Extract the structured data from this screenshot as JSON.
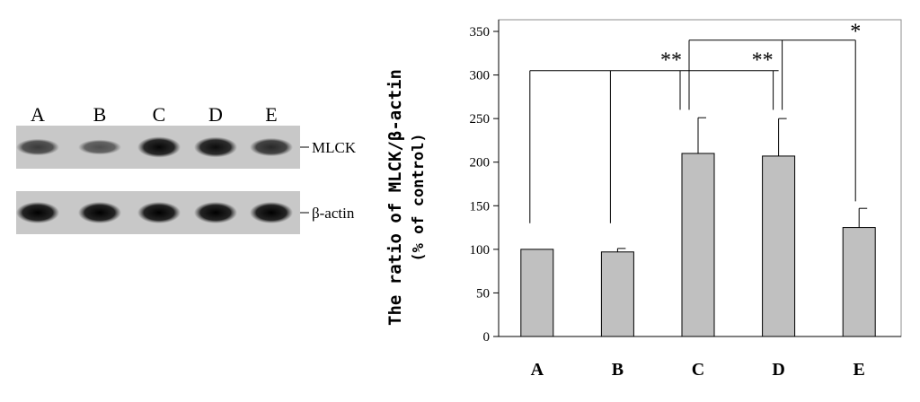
{
  "blot": {
    "lane_labels": [
      "A",
      "B",
      "C",
      "D",
      "E"
    ],
    "rows": [
      {
        "name": "MLCK",
        "label": "MLCK",
        "band_intensity": [
          0.55,
          0.4,
          0.95,
          0.9,
          0.7
        ]
      },
      {
        "name": "beta-actin",
        "label": "β-actin",
        "band_intensity": [
          1.0,
          1.0,
          1.0,
          1.0,
          1.0
        ]
      }
    ]
  },
  "chart_data": {
    "type": "bar",
    "categories": [
      "A",
      "B",
      "C",
      "D",
      "E"
    ],
    "values": [
      100,
      97,
      210,
      207,
      125
    ],
    "errors": [
      0,
      4,
      41,
      43,
      22
    ],
    "title": "",
    "ylabel": "The ratio of MLCK/β-actin",
    "ylabel2": "(% of control)",
    "xlabel": "",
    "ylim": [
      0,
      350
    ],
    "yticks": [
      0,
      50,
      100,
      150,
      200,
      250,
      300,
      350
    ],
    "bar_color": "#c0c0c0",
    "grid": false,
    "legend": "none",
    "comparisons": [
      {
        "from": [
          "A",
          "B"
        ],
        "to": "C",
        "label": "**",
        "line_level": 305,
        "drop_level": 260
      },
      {
        "from": [
          "A",
          "B"
        ],
        "to": "D",
        "label": "**",
        "line_level": 305,
        "drop_level": 260
      },
      {
        "from": [
          "C",
          "D"
        ],
        "to": "E",
        "label": "*",
        "line_level": 340,
        "drop_level": 155
      }
    ]
  }
}
